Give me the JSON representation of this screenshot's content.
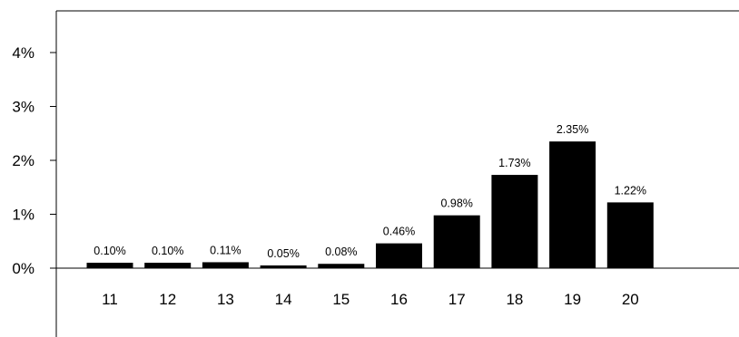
{
  "chart_data": {
    "type": "bar",
    "title": "",
    "xlabel": "",
    "ylabel": "",
    "categories": [
      "11",
      "12",
      "13",
      "14",
      "15",
      "16",
      "17",
      "18",
      "19",
      "20"
    ],
    "values": [
      0.1,
      0.1,
      0.11,
      0.05,
      0.08,
      0.46,
      0.98,
      1.73,
      2.35,
      1.22
    ],
    "value_labels": [
      "0.10%",
      "0.10%",
      "0.11%",
      "0.05%",
      "0.08%",
      "0.46%",
      "0.98%",
      "1.73%",
      "2.35%",
      "1.22%"
    ],
    "y_ticks": [
      0,
      1,
      2,
      3,
      4
    ],
    "y_tick_labels": [
      "0%",
      "1%",
      "2%",
      "3%",
      "4%"
    ],
    "ylim": [
      -1.25,
      4.8
    ],
    "grid": false,
    "bar_color": "#000000"
  }
}
